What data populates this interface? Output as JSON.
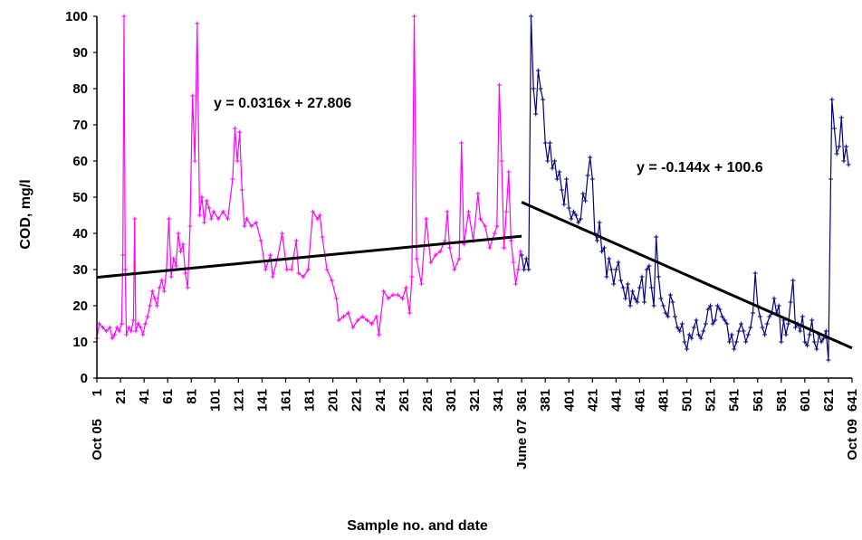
{
  "chart_data": {
    "type": "line",
    "title": "",
    "xlabel": "Sample no. and date",
    "ylabel": "COD, mg/l",
    "xlim": [
      1,
      641
    ],
    "ylim": [
      0,
      100
    ],
    "y_ticks": [
      0,
      10,
      20,
      30,
      40,
      50,
      60,
      70,
      80,
      90,
      100
    ],
    "x_ticks": [
      1,
      21,
      41,
      61,
      81,
      101,
      121,
      141,
      161,
      181,
      201,
      221,
      241,
      261,
      281,
      301,
      321,
      341,
      361,
      381,
      401,
      421,
      441,
      461,
      481,
      501,
      521,
      541,
      561,
      581,
      601,
      621,
      641
    ],
    "date_labels": [
      {
        "x": 1,
        "text": "Oct 05"
      },
      {
        "x": 361,
        "text": "June 07"
      },
      {
        "x": 641,
        "text": "Oct 09"
      }
    ],
    "grid": false,
    "legend": "none",
    "series": [
      {
        "color": "#ff00ff",
        "marker": "plus",
        "points": [
          [
            1,
            11
          ],
          [
            3,
            15
          ],
          [
            6,
            14
          ],
          [
            9,
            13
          ],
          [
            12,
            14
          ],
          [
            14,
            11
          ],
          [
            16,
            12
          ],
          [
            18,
            14
          ],
          [
            20,
            13
          ],
          [
            22,
            15
          ],
          [
            23,
            34
          ],
          [
            24,
            100
          ],
          [
            25,
            30
          ],
          [
            26,
            12
          ],
          [
            28,
            14
          ],
          [
            30,
            13
          ],
          [
            32,
            16
          ],
          [
            33,
            44
          ],
          [
            34,
            13
          ],
          [
            36,
            15
          ],
          [
            38,
            14
          ],
          [
            40,
            12
          ],
          [
            42,
            15
          ],
          [
            44,
            17
          ],
          [
            46,
            20
          ],
          [
            48,
            24
          ],
          [
            50,
            22
          ],
          [
            52,
            20
          ],
          [
            54,
            25
          ],
          [
            56,
            27
          ],
          [
            58,
            24
          ],
          [
            60,
            30
          ],
          [
            62,
            44
          ],
          [
            64,
            28
          ],
          [
            66,
            33
          ],
          [
            68,
            31
          ],
          [
            70,
            40
          ],
          [
            72,
            35
          ],
          [
            74,
            37
          ],
          [
            76,
            29
          ],
          [
            78,
            25
          ],
          [
            80,
            42
          ],
          [
            82,
            78
          ],
          [
            84,
            60
          ],
          [
            86,
            98
          ],
          [
            88,
            45
          ],
          [
            90,
            50
          ],
          [
            92,
            43
          ],
          [
            94,
            49
          ],
          [
            96,
            47
          ],
          [
            98,
            44
          ],
          [
            100,
            46
          ],
          [
            104,
            44
          ],
          [
            108,
            46
          ],
          [
            112,
            44
          ],
          [
            116,
            55
          ],
          [
            118,
            69
          ],
          [
            120,
            60
          ],
          [
            122,
            68
          ],
          [
            124,
            52
          ],
          [
            126,
            42
          ],
          [
            128,
            44
          ],
          [
            132,
            42
          ],
          [
            136,
            43
          ],
          [
            140,
            38
          ],
          [
            144,
            30
          ],
          [
            148,
            34
          ],
          [
            150,
            28
          ],
          [
            154,
            33
          ],
          [
            158,
            40
          ],
          [
            162,
            30
          ],
          [
            166,
            30
          ],
          [
            170,
            38
          ],
          [
            172,
            29
          ],
          [
            176,
            28
          ],
          [
            180,
            30
          ],
          [
            184,
            46
          ],
          [
            188,
            44
          ],
          [
            190,
            45
          ],
          [
            192,
            39
          ],
          [
            196,
            30
          ],
          [
            200,
            27
          ],
          [
            204,
            22
          ],
          [
            206,
            16
          ],
          [
            210,
            17
          ],
          [
            214,
            18
          ],
          [
            218,
            14
          ],
          [
            222,
            16
          ],
          [
            226,
            17
          ],
          [
            230,
            16
          ],
          [
            234,
            15
          ],
          [
            238,
            17
          ],
          [
            240,
            12
          ],
          [
            244,
            24
          ],
          [
            248,
            22
          ],
          [
            252,
            23
          ],
          [
            256,
            23
          ],
          [
            260,
            22
          ],
          [
            263,
            25
          ],
          [
            266,
            18
          ],
          [
            268,
            28
          ],
          [
            270,
            100
          ],
          [
            272,
            33
          ],
          [
            276,
            26
          ],
          [
            280,
            44
          ],
          [
            284,
            32
          ],
          [
            288,
            34
          ],
          [
            292,
            35
          ],
          [
            296,
            38
          ],
          [
            298,
            46
          ],
          [
            300,
            36
          ],
          [
            304,
            30
          ],
          [
            308,
            33
          ],
          [
            310,
            65
          ],
          [
            312,
            37
          ],
          [
            316,
            46
          ],
          [
            320,
            38
          ],
          [
            324,
            51
          ],
          [
            326,
            44
          ],
          [
            330,
            42
          ],
          [
            334,
            36
          ],
          [
            338,
            40
          ],
          [
            340,
            42
          ],
          [
            342,
            81
          ],
          [
            344,
            60
          ],
          [
            346,
            36
          ],
          [
            348,
            46
          ],
          [
            350,
            57
          ],
          [
            352,
            38
          ],
          [
            354,
            32
          ],
          [
            356,
            26
          ],
          [
            358,
            30
          ],
          [
            360,
            35
          ]
        ]
      },
      {
        "color": "#000080",
        "marker": "plus",
        "points": [
          [
            361,
            34
          ],
          [
            363,
            30
          ],
          [
            365,
            33
          ],
          [
            367,
            30
          ],
          [
            369,
            100
          ],
          [
            371,
            80
          ],
          [
            373,
            73
          ],
          [
            375,
            85
          ],
          [
            377,
            80
          ],
          [
            379,
            77
          ],
          [
            381,
            65
          ],
          [
            383,
            60
          ],
          [
            385,
            65
          ],
          [
            387,
            58
          ],
          [
            389,
            60
          ],
          [
            391,
            55
          ],
          [
            393,
            57
          ],
          [
            395,
            52
          ],
          [
            397,
            48
          ],
          [
            399,
            55
          ],
          [
            401,
            47
          ],
          [
            403,
            44
          ],
          [
            405,
            46
          ],
          [
            407,
            45
          ],
          [
            409,
            43
          ],
          [
            411,
            44
          ],
          [
            413,
            51
          ],
          [
            415,
            49
          ],
          [
            417,
            56
          ],
          [
            419,
            61
          ],
          [
            421,
            55
          ],
          [
            423,
            40
          ],
          [
            425,
            38
          ],
          [
            427,
            43
          ],
          [
            429,
            35
          ],
          [
            431,
            36
          ],
          [
            433,
            28
          ],
          [
            435,
            33
          ],
          [
            437,
            30
          ],
          [
            439,
            26
          ],
          [
            441,
            30
          ],
          [
            443,
            32
          ],
          [
            445,
            27
          ],
          [
            447,
            25
          ],
          [
            449,
            22
          ],
          [
            451,
            26
          ],
          [
            453,
            20
          ],
          [
            455,
            24
          ],
          [
            457,
            22
          ],
          [
            459,
            21
          ],
          [
            461,
            25
          ],
          [
            463,
            28
          ],
          [
            465,
            21
          ],
          [
            467,
            30
          ],
          [
            469,
            31
          ],
          [
            471,
            25
          ],
          [
            473,
            20
          ],
          [
            475,
            39
          ],
          [
            477,
            28
          ],
          [
            479,
            22
          ],
          [
            481,
            20
          ],
          [
            483,
            18
          ],
          [
            485,
            17
          ],
          [
            487,
            23
          ],
          [
            489,
            21
          ],
          [
            491,
            17
          ],
          [
            493,
            14
          ],
          [
            495,
            13
          ],
          [
            497,
            15
          ],
          [
            499,
            10
          ],
          [
            501,
            8
          ],
          [
            503,
            12
          ],
          [
            505,
            11
          ],
          [
            507,
            14
          ],
          [
            509,
            16
          ],
          [
            511,
            12
          ],
          [
            513,
            11
          ],
          [
            515,
            13
          ],
          [
            517,
            15
          ],
          [
            519,
            19
          ],
          [
            521,
            20
          ],
          [
            523,
            15
          ],
          [
            525,
            16
          ],
          [
            527,
            20
          ],
          [
            529,
            19
          ],
          [
            531,
            17
          ],
          [
            533,
            16
          ],
          [
            535,
            15
          ],
          [
            537,
            10
          ],
          [
            539,
            12
          ],
          [
            541,
            8
          ],
          [
            543,
            10
          ],
          [
            545,
            13
          ],
          [
            547,
            15
          ],
          [
            549,
            13
          ],
          [
            551,
            10
          ],
          [
            553,
            12
          ],
          [
            555,
            14
          ],
          [
            557,
            18
          ],
          [
            559,
            29
          ],
          [
            561,
            20
          ],
          [
            563,
            17
          ],
          [
            565,
            14
          ],
          [
            567,
            12
          ],
          [
            569,
            15
          ],
          [
            571,
            17
          ],
          [
            573,
            18
          ],
          [
            575,
            22
          ],
          [
            577,
            18
          ],
          [
            579,
            20
          ],
          [
            581,
            10
          ],
          [
            583,
            16
          ],
          [
            585,
            12
          ],
          [
            587,
            15
          ],
          [
            589,
            21
          ],
          [
            591,
            27
          ],
          [
            593,
            14
          ],
          [
            595,
            15
          ],
          [
            597,
            13
          ],
          [
            599,
            17
          ],
          [
            601,
            10
          ],
          [
            603,
            9
          ],
          [
            605,
            12
          ],
          [
            607,
            16
          ],
          [
            609,
            10
          ],
          [
            611,
            8
          ],
          [
            613,
            12
          ],
          [
            615,
            10
          ],
          [
            617,
            11
          ],
          [
            619,
            13
          ],
          [
            621,
            5
          ],
          [
            623,
            55
          ],
          [
            624,
            77
          ],
          [
            626,
            69
          ],
          [
            628,
            62
          ],
          [
            630,
            64
          ],
          [
            632,
            72
          ],
          [
            634,
            60
          ],
          [
            636,
            64
          ],
          [
            638,
            59
          ]
        ]
      }
    ],
    "trendlines": [
      {
        "label": "y = 0.0316x + 27.806",
        "x_range": [
          1,
          361
        ],
        "slope": 0.0316,
        "intercept": 27.806,
        "color": "#000000"
      },
      {
        "label": "y = -0.144x + 100.6",
        "x_range": [
          361,
          641
        ],
        "slope": -0.144,
        "intercept": 100.6,
        "color": "#000000"
      }
    ]
  }
}
